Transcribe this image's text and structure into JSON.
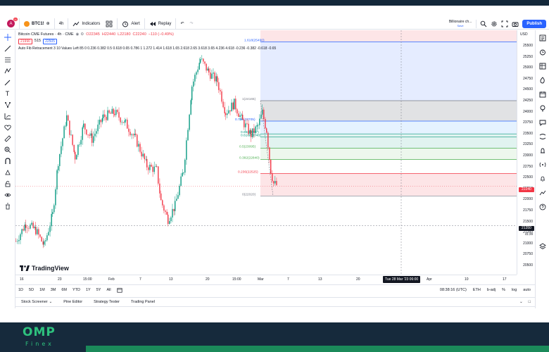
{
  "toolbar": {
    "avatar_letter": "A",
    "avatar_badge": "11",
    "symbol": "BTC1!",
    "interval": "4h",
    "indicators_label": "Indicators",
    "alert_label": "Alert",
    "replay_label": "Replay",
    "layout_name": "Billionaire ch...",
    "layout_sub": "Save",
    "publish_label": "Publish"
  },
  "legend": {
    "title": "Bitcoin CME Futures · 4h · CME",
    "o": "O22345",
    "h": "H22440",
    "l": "L22180",
    "c": "C22240",
    "change": "−110 (−0.49%)",
    "sell_price": "21990",
    "spread": "515",
    "buy_price": "22505",
    "indicator_line": "Auto Fib Retracement 3 10 Values Left 85 0 0.236 0.382 0.5 0.618 0.65 0.786 1 1.272 1.414 1.618 1.65 2.618 2.65 3.618 3.65 4.236 4.618 -0.236 -0.382 -0.618 -0.65"
  },
  "fib_labels": [
    {
      "text": "1.618(25490)",
      "color": "#2962ff"
    },
    {
      "text": "1(24165)",
      "color": "#787b86"
    },
    {
      "text": "0.786(23705)",
      "color": "#2962ff"
    },
    {
      "text": "0.65(23417)",
      "color": "#089981"
    },
    {
      "text": "0.618(23348)",
      "color": "#089981"
    },
    {
      "text": "0.5(23095)",
      "color": "#4caf50"
    },
    {
      "text": "0.382(22840)",
      "color": "#4caf50"
    },
    {
      "text": "0.236(22525)",
      "color": "#f23645"
    },
    {
      "text": "0(22020)",
      "color": "#787b86"
    }
  ],
  "price_axis": {
    "currency": "USD",
    "ticks": [
      "25500",
      "25250",
      "25000",
      "24750",
      "24500",
      "24250",
      "24000",
      "23750",
      "23500",
      "23250",
      "23000",
      "22750",
      "22500",
      "22250",
      "22000",
      "21750",
      "21500",
      "21250",
      "21000",
      "20750",
      "20500"
    ],
    "last_price_tag": "22240",
    "crosshair_tag": "21350",
    "countdown_tag": "21350",
    "countdown": "41:29"
  },
  "time_axis": {
    "labels": [
      "16",
      "23",
      "15:00",
      "Feb",
      "7",
      "13",
      "20",
      "15:00",
      "Mar",
      "7",
      "13",
      "20",
      "27",
      "Apr",
      "10",
      "17"
    ],
    "crosshair_tag": "Tue 28 Mar '23   06:00"
  },
  "range_bar": {
    "ranges": [
      "1D",
      "5D",
      "1M",
      "3M",
      "6M",
      "YTD",
      "1Y",
      "5Y",
      "All"
    ],
    "clock": "08:38:16 (UTC)",
    "session": "ETH",
    "adj": "b-adj",
    "pct": "%",
    "log": "log",
    "auto": "auto"
  },
  "bottom_tabs": [
    "Stock Screener",
    "Pine Editor",
    "Strategy Tester",
    "Trading Panel"
  ],
  "watermark": "TradingView",
  "brand": {
    "name": "OMP",
    "sub": "Finex"
  },
  "colors": {
    "up": "#089981",
    "down": "#f23645",
    "accent": "#2962ff",
    "footer": "#162a3c",
    "brand": "#2ec27e"
  }
}
